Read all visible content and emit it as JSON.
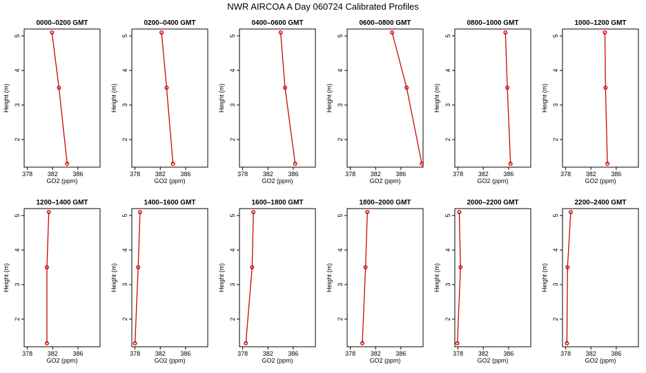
{
  "title": "NWR AIRCOA A  Day 060724  Calibrated Profiles",
  "chart_data": [
    {
      "type": "line",
      "title": "0000–0200 GMT",
      "xlabel": "GO2 (ppm)",
      "ylabel": "Height (m)",
      "xlim": [
        377.5,
        389.5
      ],
      "ylim": [
        1.2,
        5.2
      ],
      "xticks": [
        378,
        382,
        386
      ],
      "yticks": [
        2,
        3,
        4,
        5
      ],
      "series": [
        {
          "x": [
            384.3,
            383.0,
            381.9
          ],
          "y": [
            1.3,
            3.5,
            5.1
          ]
        }
      ]
    },
    {
      "type": "line",
      "title": "0200–0400 GMT",
      "xlabel": "GO2 (ppm)",
      "ylabel": "Height (m)",
      "xlim": [
        377.5,
        389.5
      ],
      "ylim": [
        1.2,
        5.2
      ],
      "xticks": [
        378,
        382,
        386
      ],
      "yticks": [
        2,
        3,
        4,
        5
      ],
      "series": [
        {
          "x": [
            384.0,
            383.0,
            382.2
          ],
          "y": [
            1.3,
            3.5,
            5.1
          ]
        }
      ]
    },
    {
      "type": "line",
      "title": "0400–0600 GMT",
      "xlabel": "GO2 (ppm)",
      "ylabel": "Height (m)",
      "xlim": [
        377.5,
        389.5
      ],
      "ylim": [
        1.2,
        5.2
      ],
      "xticks": [
        378,
        382,
        386
      ],
      "yticks": [
        2,
        3,
        4,
        5
      ],
      "series": [
        {
          "x": [
            386.3,
            384.7,
            384.0
          ],
          "y": [
            1.3,
            3.5,
            5.1
          ]
        }
      ]
    },
    {
      "type": "line",
      "title": "0600–0800 GMT",
      "xlabel": "GO2 (ppm)",
      "ylabel": "Height (m)",
      "xlim": [
        377.5,
        389.5
      ],
      "ylim": [
        1.2,
        5.2
      ],
      "xticks": [
        378,
        382,
        386
      ],
      "yticks": [
        2,
        3,
        4,
        5
      ],
      "series": [
        {
          "x": [
            389.3,
            386.9,
            384.6
          ],
          "y": [
            1.3,
            3.5,
            5.1
          ]
        }
      ]
    },
    {
      "type": "line",
      "title": "0800–1000 GMT",
      "xlabel": "GO2 (ppm)",
      "ylabel": "Height (m)",
      "xlim": [
        377.5,
        389.5
      ],
      "ylim": [
        1.2,
        5.2
      ],
      "xticks": [
        378,
        382,
        386
      ],
      "yticks": [
        2,
        3,
        4,
        5
      ],
      "series": [
        {
          "x": [
            386.3,
            385.8,
            385.5
          ],
          "y": [
            1.3,
            3.5,
            5.1
          ]
        }
      ]
    },
    {
      "type": "line",
      "title": "1000–1200 GMT",
      "xlabel": "GO2 (ppm)",
      "ylabel": "Height (m)",
      "xlim": [
        377.5,
        389.5
      ],
      "ylim": [
        1.2,
        5.2
      ],
      "xticks": [
        378,
        382,
        386
      ],
      "yticks": [
        2,
        3,
        4,
        5
      ],
      "series": [
        {
          "x": [
            384.6,
            384.3,
            384.2
          ],
          "y": [
            1.3,
            3.5,
            5.1
          ]
        }
      ]
    },
    {
      "type": "line",
      "title": "1200–1400 GMT",
      "xlabel": "GO2 (ppm)",
      "ylabel": "Height (m)",
      "xlim": [
        377.5,
        389.5
      ],
      "ylim": [
        1.2,
        5.2
      ],
      "xticks": [
        378,
        382,
        386
      ],
      "yticks": [
        2,
        3,
        4,
        5
      ],
      "series": [
        {
          "x": [
            381.1,
            381.1,
            381.4
          ],
          "y": [
            1.3,
            3.5,
            5.1
          ]
        }
      ]
    },
    {
      "type": "line",
      "title": "1400–1600 GMT",
      "xlabel": "GO2 (ppm)",
      "ylabel": "Height (m)",
      "xlim": [
        377.5,
        389.5
      ],
      "ylim": [
        1.2,
        5.2
      ],
      "xticks": [
        378,
        382,
        386
      ],
      "yticks": [
        2,
        3,
        4,
        5
      ],
      "series": [
        {
          "x": [
            378.0,
            378.5,
            378.8
          ],
          "y": [
            1.3,
            3.5,
            5.1
          ]
        }
      ]
    },
    {
      "type": "line",
      "title": "1600–1800 GMT",
      "xlabel": "GO2 (ppm)",
      "ylabel": "Height (m)",
      "xlim": [
        377.5,
        389.5
      ],
      "ylim": [
        1.2,
        5.2
      ],
      "xticks": [
        378,
        382,
        386
      ],
      "yticks": [
        2,
        3,
        4,
        5
      ],
      "series": [
        {
          "x": [
            378.5,
            379.5,
            379.7
          ],
          "y": [
            1.3,
            3.5,
            5.1
          ]
        }
      ]
    },
    {
      "type": "line",
      "title": "1800–2000 GMT",
      "xlabel": "GO2 (ppm)",
      "ylabel": "Height (m)",
      "xlim": [
        377.5,
        389.5
      ],
      "ylim": [
        1.2,
        5.2
      ],
      "xticks": [
        378,
        382,
        386
      ],
      "yticks": [
        2,
        3,
        4,
        5
      ],
      "series": [
        {
          "x": [
            379.9,
            380.4,
            380.7
          ],
          "y": [
            1.3,
            3.5,
            5.1
          ]
        }
      ]
    },
    {
      "type": "line",
      "title": "2000–2200 GMT",
      "xlabel": "GO2 (ppm)",
      "ylabel": "Height (m)",
      "xlim": [
        377.5,
        389.5
      ],
      "ylim": [
        1.2,
        5.2
      ],
      "xticks": [
        378,
        382,
        386
      ],
      "yticks": [
        2,
        3,
        4,
        5
      ],
      "series": [
        {
          "x": [
            377.9,
            378.4,
            378.2
          ],
          "y": [
            1.3,
            3.5,
            5.1
          ]
        }
      ]
    },
    {
      "type": "line",
      "title": "2200–2400 GMT",
      "xlabel": "GO2 (ppm)",
      "ylabel": "Height (m)",
      "xlim": [
        377.5,
        389.5
      ],
      "ylim": [
        1.2,
        5.2
      ],
      "xticks": [
        378,
        382,
        386
      ],
      "yticks": [
        2,
        3,
        4,
        5
      ],
      "series": [
        {
          "x": [
            378.2,
            378.3,
            378.8
          ],
          "y": [
            1.3,
            3.5,
            5.1
          ]
        }
      ]
    }
  ]
}
